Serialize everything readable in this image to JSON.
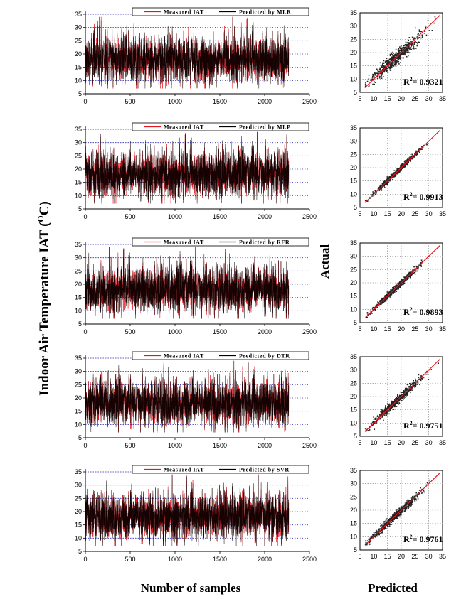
{
  "figure": {
    "ylabel": "Indoor Air Temperature IAT (",
    "ylabel_o": "O",
    "ylabel_end": "C)",
    "xlabel": "Number of samples",
    "scatter_xlabel": "Predicted",
    "scatter_ylabel": "Actual"
  },
  "colors": {
    "measured": "#e8141c",
    "predicted": "#000000",
    "grid": "#2b2bb0",
    "fit": "#e8141c"
  },
  "chart_data": [
    {
      "type": "line",
      "series": [
        {
          "name": "Measured IAT"
        },
        {
          "name": "Predicted by MLR"
        }
      ],
      "legend_measured": "Measured IAT",
      "legend_predicted": "Predicted by MLR",
      "xlim": [
        0,
        2500
      ],
      "ylim": [
        5,
        35
      ],
      "xticks": [
        0,
        500,
        1000,
        1500,
        2000,
        2500
      ],
      "yticks": [
        5,
        10,
        15,
        20,
        25,
        30,
        35
      ],
      "n_samples": 2270,
      "y_baseline": 18,
      "y_min_observed": 7,
      "y_max_observed": 34
    },
    {
      "type": "scatter",
      "r2_label": "R",
      "r2_sup": "2",
      "r2_value": "= 0.9321",
      "xlim": [
        5,
        35
      ],
      "ylim": [
        5,
        35
      ],
      "xticks": [
        5,
        10,
        15,
        20,
        25,
        30,
        35
      ],
      "yticks": [
        5,
        10,
        15,
        20,
        25,
        30,
        35
      ],
      "fit_line": [
        [
          7,
          7
        ],
        [
          34,
          34
        ]
      ],
      "grid": true
    },
    {
      "type": "line",
      "series": [
        {
          "name": "Measured IAT"
        },
        {
          "name": "Predicted by MLP"
        }
      ],
      "legend_measured": "Measured IAT",
      "legend_predicted": "Predicted by MLP",
      "xlim": [
        0,
        2500
      ],
      "ylim": [
        5,
        35
      ],
      "xticks": [
        0,
        500,
        1000,
        1500,
        2000,
        2500
      ],
      "yticks": [
        5,
        10,
        15,
        20,
        25,
        30,
        35
      ],
      "n_samples": 2270,
      "y_baseline": 18,
      "y_min_observed": 7,
      "y_max_observed": 34
    },
    {
      "type": "scatter",
      "r2_label": "R",
      "r2_sup": "2",
      "r2_value": "= 0.9913",
      "xlim": [
        5,
        35
      ],
      "ylim": [
        5,
        35
      ],
      "xticks": [
        5,
        10,
        15,
        20,
        25,
        30,
        35
      ],
      "yticks": [
        5,
        10,
        15,
        20,
        25,
        30,
        35
      ],
      "fit_line": [
        [
          7,
          7
        ],
        [
          34,
          34
        ]
      ],
      "grid": true
    },
    {
      "type": "line",
      "series": [
        {
          "name": "Measured IAT"
        },
        {
          "name": "Predicted by RFR"
        }
      ],
      "legend_measured": "Measured IAT",
      "legend_predicted": "Predicted by RFR",
      "xlim": [
        0,
        2500
      ],
      "ylim": [
        5,
        35
      ],
      "xticks": [
        0,
        500,
        1000,
        1500,
        2000,
        2500
      ],
      "yticks": [
        5,
        10,
        15,
        20,
        25,
        30,
        35
      ],
      "n_samples": 2270,
      "y_baseline": 18,
      "y_min_observed": 7,
      "y_max_observed": 34
    },
    {
      "type": "scatter",
      "r2_label": "R",
      "r2_sup": "2",
      "r2_value": "= 0.9893",
      "xlim": [
        5,
        35
      ],
      "ylim": [
        5,
        35
      ],
      "xticks": [
        5,
        10,
        15,
        20,
        25,
        30,
        35
      ],
      "yticks": [
        5,
        10,
        15,
        20,
        25,
        30,
        35
      ],
      "fit_line": [
        [
          7,
          7
        ],
        [
          34,
          34
        ]
      ],
      "grid": true
    },
    {
      "type": "line",
      "series": [
        {
          "name": "Measured IAT"
        },
        {
          "name": "Predicted by DTR"
        }
      ],
      "legend_measured": "Measured IAT",
      "legend_predicted": "Predicted by DTR",
      "xlim": [
        0,
        2500
      ],
      "ylim": [
        5,
        35
      ],
      "xticks": [
        0,
        500,
        1000,
        1500,
        2000,
        2500
      ],
      "yticks": [
        5,
        10,
        15,
        20,
        25,
        30,
        35
      ],
      "n_samples": 2270,
      "y_baseline": 18,
      "y_min_observed": 7,
      "y_max_observed": 34
    },
    {
      "type": "scatter",
      "r2_label": "R",
      "r2_sup": "2",
      "r2_value": "= 0.9751",
      "xlim": [
        5,
        35
      ],
      "ylim": [
        5,
        35
      ],
      "xticks": [
        5,
        10,
        15,
        20,
        25,
        30,
        35
      ],
      "yticks": [
        5,
        10,
        15,
        20,
        25,
        30,
        35
      ],
      "fit_line": [
        [
          7,
          7
        ],
        [
          34,
          34
        ]
      ],
      "grid": true
    },
    {
      "type": "line",
      "series": [
        {
          "name": "Measured IAT"
        },
        {
          "name": "Predicted by SVR"
        }
      ],
      "legend_measured": "Measured IAT",
      "legend_predicted": "Predicted by SVR",
      "xlim": [
        0,
        2500
      ],
      "ylim": [
        5,
        35
      ],
      "xticks": [
        0,
        500,
        1000,
        1500,
        2000,
        2500
      ],
      "yticks": [
        5,
        10,
        15,
        20,
        25,
        30,
        35
      ],
      "n_samples": 2270,
      "y_baseline": 18,
      "y_min_observed": 7,
      "y_max_observed": 34
    },
    {
      "type": "scatter",
      "r2_label": "R",
      "r2_sup": "2",
      "r2_value": "= 0.9761",
      "xlim": [
        5,
        35
      ],
      "ylim": [
        5,
        35
      ],
      "xticks": [
        5,
        10,
        15,
        20,
        25,
        30,
        35
      ],
      "yticks": [
        5,
        10,
        15,
        20,
        25,
        30,
        35
      ],
      "fit_line": [
        [
          7,
          7
        ],
        [
          34,
          34
        ]
      ],
      "grid": true
    }
  ]
}
